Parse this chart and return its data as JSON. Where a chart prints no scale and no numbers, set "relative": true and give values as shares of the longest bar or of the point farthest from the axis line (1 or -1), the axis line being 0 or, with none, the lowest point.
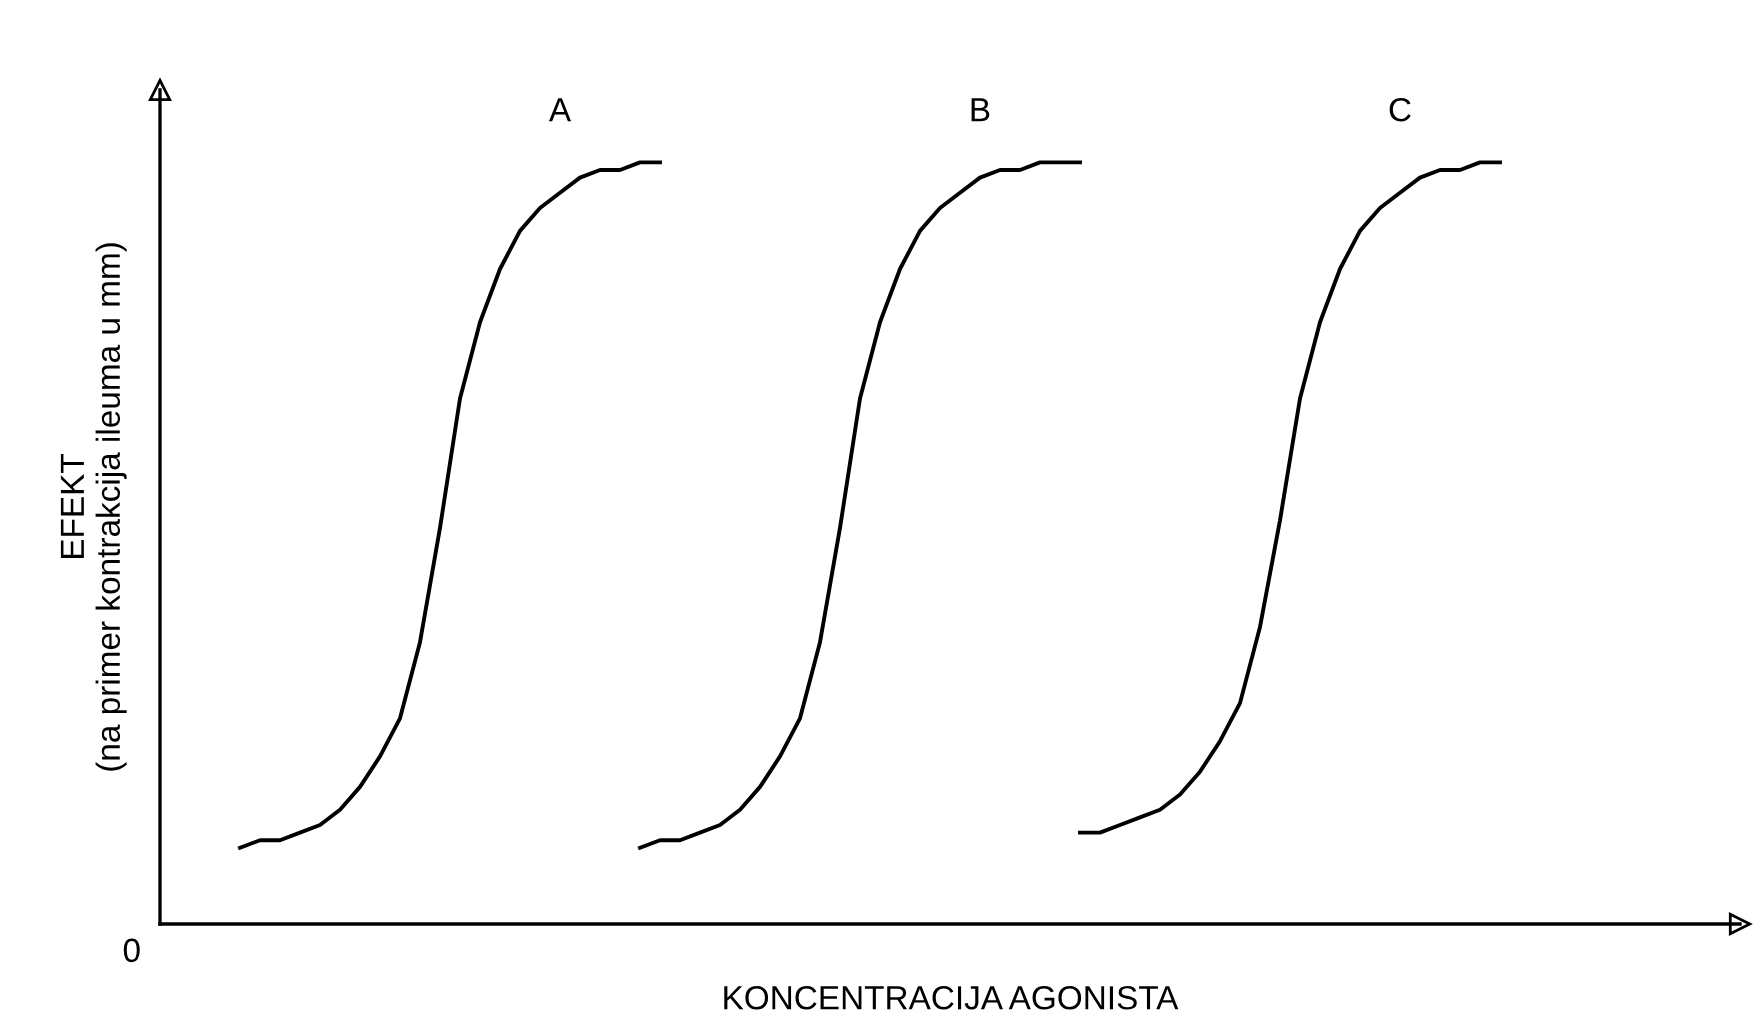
{
  "chart_data": {
    "type": "line",
    "relative": true,
    "xlabel": "KONCENTRACIJA AGONISTA",
    "ylabel": "EFEKT\n(na primer kontrakcija ileuma u mm)",
    "annotations": [
      "0"
    ],
    "categories": [
      null,
      null,
      null,
      null,
      null,
      null,
      null,
      null,
      null,
      null,
      null,
      null,
      null,
      null,
      null,
      null,
      null,
      null,
      null,
      null,
      null,
      null,
      null,
      null,
      null,
      null,
      null,
      null,
      null,
      null,
      null,
      null,
      null,
      null,
      null,
      null,
      null,
      null,
      null,
      null,
      null,
      null,
      null,
      null,
      null,
      null,
      null,
      null,
      null,
      null,
      null,
      null,
      null,
      null,
      null,
      null,
      null,
      null,
      null,
      null,
      null,
      null,
      null,
      null,
      null,
      null,
      null,
      null,
      null,
      null,
      null,
      null,
      null,
      null,
      null,
      null,
      null,
      null,
      null
    ],
    "series": [
      {
        "name": "A",
        "color": "#000000",
        "values": [
          null,
          null,
          null,
          null,
          0.1,
          0.11,
          0.11,
          0.12,
          0.13,
          0.15,
          0.18,
          0.22,
          0.27,
          0.37,
          0.52,
          0.69,
          0.79,
          0.86,
          0.91,
          0.94,
          0.96,
          0.98,
          0.99,
          0.99,
          1.0,
          1.0,
          null,
          null,
          null,
          null,
          null,
          null,
          null,
          null,
          null,
          null,
          null,
          null,
          null,
          null,
          null,
          null,
          null,
          null,
          null,
          null,
          null,
          null,
          null,
          null,
          null,
          null,
          null,
          null,
          null,
          null,
          null,
          null,
          null,
          null,
          null,
          null,
          null,
          null,
          null,
          null,
          null,
          null,
          null,
          null,
          null,
          null,
          null,
          null,
          null,
          null,
          null,
          null,
          null
        ]
      },
      {
        "name": "B",
        "color": "#000000",
        "values": [
          null,
          null,
          null,
          null,
          null,
          null,
          null,
          null,
          null,
          null,
          null,
          null,
          null,
          null,
          null,
          null,
          null,
          null,
          null,
          null,
          null,
          null,
          null,
          null,
          0.1,
          0.11,
          0.11,
          0.12,
          0.13,
          0.15,
          0.18,
          0.22,
          0.27,
          0.37,
          0.52,
          0.69,
          0.79,
          0.86,
          0.91,
          0.94,
          0.96,
          0.98,
          0.99,
          0.99,
          1.0,
          1.0,
          1.0,
          null,
          null,
          null,
          null,
          null,
          null,
          null,
          null,
          null,
          null,
          null,
          null,
          null,
          null,
          null,
          null,
          null,
          null,
          null,
          null,
          null,
          null,
          null,
          null,
          null,
          null,
          null,
          null,
          null,
          null,
          null,
          null
        ]
      },
      {
        "name": "C",
        "color": "#000000",
        "values": [
          null,
          null,
          null,
          null,
          null,
          null,
          null,
          null,
          null,
          null,
          null,
          null,
          null,
          null,
          null,
          null,
          null,
          null,
          null,
          null,
          null,
          null,
          null,
          null,
          null,
          null,
          null,
          null,
          null,
          null,
          null,
          null,
          null,
          null,
          null,
          null,
          null,
          null,
          null,
          null,
          null,
          null,
          null,
          null,
          null,
          null,
          0.12,
          0.12,
          0.13,
          0.14,
          0.15,
          0.17,
          0.2,
          0.24,
          0.29,
          0.39,
          0.53,
          0.69,
          0.79,
          0.86,
          0.91,
          0.94,
          0.96,
          0.98,
          0.99,
          0.99,
          1.0,
          1.0,
          null,
          null,
          null,
          null,
          null,
          null,
          null,
          null,
          null,
          null,
          null
        ]
      }
    ]
  }
}
